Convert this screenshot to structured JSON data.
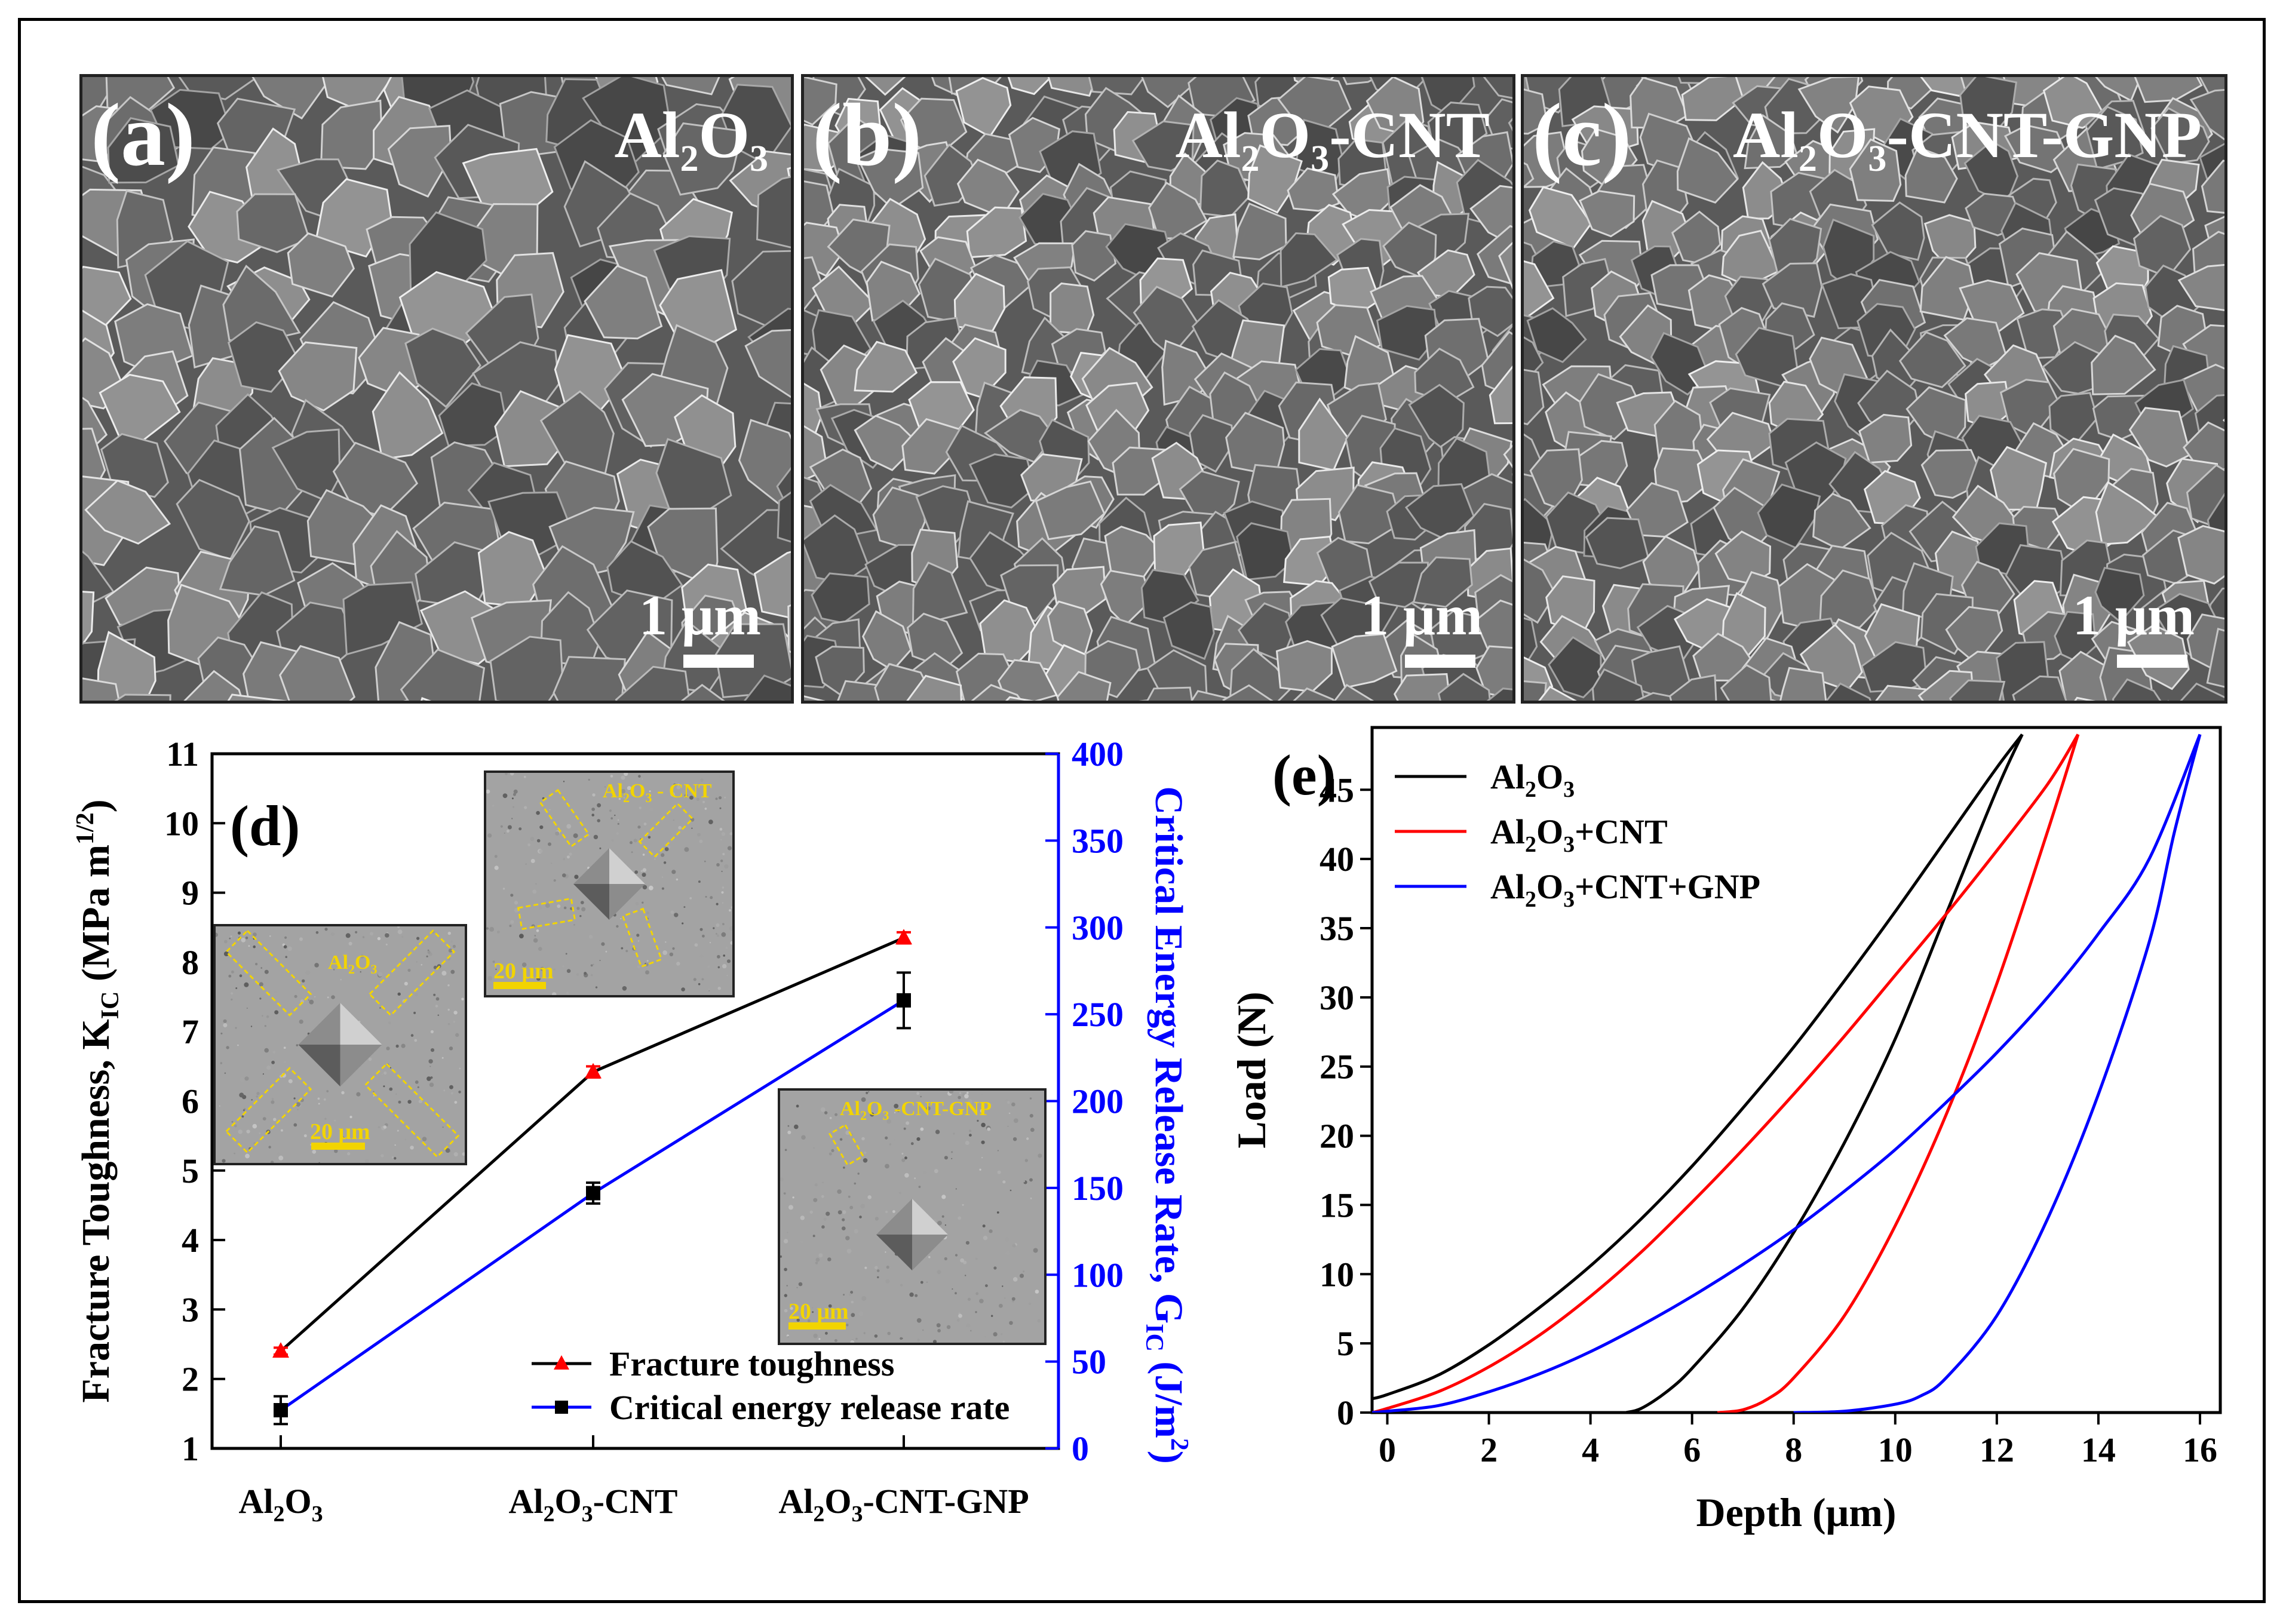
{
  "sem_panels": [
    {
      "letter": "(a)",
      "material": "Al",
      "sub1": "2",
      "mid": "O",
      "sub2": "3",
      "suffix": "",
      "scale_label": "1 μm"
    },
    {
      "letter": "(b)",
      "material": "Al",
      "sub1": "2",
      "mid": "O",
      "sub2": "3",
      "suffix": "-CNT",
      "scale_label": "1 μm"
    },
    {
      "letter": "(c)",
      "material": "Al",
      "sub1": "2",
      "mid": "O",
      "sub2": "3",
      "suffix": "-CNT-GNP",
      "scale_label": "1 μm"
    }
  ],
  "chart_data": [
    {
      "panel": "(d)",
      "type": "line",
      "categories": [
        "Al2O3",
        "Al2O3-CNT",
        "Al2O3-CNT-GNP"
      ],
      "category_labels": [
        {
          "a": "Al",
          "s1": "2",
          "b": "O",
          "s2": "3",
          "c": ""
        },
        {
          "a": "Al",
          "s1": "2",
          "b": "O",
          "s2": "3",
          "c": "-CNT"
        },
        {
          "a": "Al",
          "s1": "2",
          "b": "O",
          "s2": "3",
          "c": "-CNT-GNP"
        }
      ],
      "ylabel": "Fracture Toughness, K",
      "ylabel_sub": "IC",
      "ylabel_unit": " (MPa m",
      "ylabel_sup": "1/2",
      "ylabel_end": ")",
      "y2label": "Critical Energy Release Rate, G",
      "y2label_sub": "IC",
      "y2label_unit": " (J/m",
      "y2label_sup": "2",
      "y2label_end": ")",
      "ylim": [
        1,
        11
      ],
      "yticks": [
        1,
        2,
        3,
        4,
        5,
        6,
        7,
        8,
        9,
        10,
        11
      ],
      "y2lim": [
        0,
        400
      ],
      "y2ticks": [
        0,
        50,
        100,
        150,
        200,
        250,
        300,
        350,
        400
      ],
      "series": [
        {
          "name": "Fracture toughness",
          "axis": "left",
          "color": "#000000",
          "marker_color": "#ff0000",
          "marker": "triangle",
          "values": [
            2.4,
            6.42,
            8.35
          ],
          "errors": [
            0.05,
            0.08,
            0.08
          ]
        },
        {
          "name": "Critical energy release rate",
          "axis": "right",
          "color": "#0000ff",
          "marker_color": "#000000",
          "marker": "square",
          "values": [
            22,
            147,
            258
          ],
          "errors": [
            8,
            6,
            16
          ]
        }
      ],
      "insets": [
        {
          "label_a": "Al",
          "label_s1": "2",
          "label_b": "O",
          "label_s2": "3",
          "label_c": "",
          "scale": "20 μm"
        },
        {
          "label_a": "Al",
          "label_s1": "2",
          "label_b": "O",
          "label_s2": "3",
          "label_c": " - CNT",
          "scale": "20 μm"
        },
        {
          "label_a": "Al",
          "label_s1": "2",
          "label_b": "O",
          "label_s2": "3",
          "label_c": " -CNT-GNP",
          "scale": "20 μm"
        }
      ]
    },
    {
      "panel": "(e)",
      "type": "line",
      "xlabel": "Depth (μm)",
      "ylabel": "Load (N)",
      "xlim": [
        -0.3,
        16.4
      ],
      "ylim": [
        0,
        49.5
      ],
      "xticks": [
        0,
        2,
        4,
        6,
        8,
        10,
        12,
        14,
        16
      ],
      "yticks": [
        0,
        5,
        10,
        15,
        20,
        25,
        30,
        35,
        40,
        45
      ],
      "series": [
        {
          "name": "Al2O3",
          "label": {
            "a": "Al",
            "s1": "2",
            "b": "O",
            "s2": "3",
            "c": ""
          },
          "color": "#000000",
          "loading": [
            [
              -0.3,
              1.0
            ],
            [
              0,
              1.3
            ],
            [
              1,
              2.7
            ],
            [
              2,
              4.9
            ],
            [
              3,
              7.6
            ],
            [
              4,
              10.6
            ],
            [
              5,
              14.0
            ],
            [
              6,
              17.8
            ],
            [
              7,
              22.0
            ],
            [
              8,
              26.4
            ],
            [
              9,
              31.2
            ],
            [
              10,
              36.2
            ],
            [
              11,
              41.4
            ],
            [
              12,
              46.6
            ],
            [
              12.5,
              49.0
            ]
          ],
          "unloading": [
            [
              12.5,
              49.0
            ],
            [
              12.0,
              45.0
            ],
            [
              11.0,
              36.0
            ],
            [
              10.0,
              27.0
            ],
            [
              9.0,
              19.5
            ],
            [
              8.0,
              13.0
            ],
            [
              7.0,
              7.5
            ],
            [
              6.0,
              3.2
            ],
            [
              5.5,
              1.5
            ],
            [
              5.0,
              0.3
            ],
            [
              4.7,
              0.0
            ]
          ]
        },
        {
          "name": "Al2O3+CNT",
          "label": {
            "a": "Al",
            "s1": "2",
            "b": "O",
            "s2": "3",
            "c": "+CNT"
          },
          "color": "#ff0000",
          "loading": [
            [
              -0.3,
              0.0
            ],
            [
              0,
              0.3
            ],
            [
              1,
              1.5
            ],
            [
              2,
              3.3
            ],
            [
              3,
              5.6
            ],
            [
              4,
              8.4
            ],
            [
              5,
              11.6
            ],
            [
              6,
              15.2
            ],
            [
              7,
              19.0
            ],
            [
              8,
              23.0
            ],
            [
              9,
              27.2
            ],
            [
              10,
              31.6
            ],
            [
              11,
              36.0
            ],
            [
              12,
              40.6
            ],
            [
              13,
              45.4
            ],
            [
              13.6,
              49.0
            ]
          ],
          "unloading": [
            [
              13.6,
              49.0
            ],
            [
              13.0,
              42.0
            ],
            [
              12.0,
              31.0
            ],
            [
              11.0,
              21.5
            ],
            [
              10.0,
              13.5
            ],
            [
              9.0,
              7.0
            ],
            [
              8.0,
              2.5
            ],
            [
              7.5,
              1.0
            ],
            [
              7.0,
              0.2
            ],
            [
              6.5,
              0.0
            ]
          ]
        },
        {
          "name": "Al2O3+CNT+GNP",
          "label": {
            "a": "Al",
            "s1": "2",
            "b": "O",
            "s2": "3",
            "c": "+CNT+GNP"
          },
          "color": "#0000ff",
          "loading": [
            [
              -0.3,
              0.0
            ],
            [
              0,
              0.1
            ],
            [
              1,
              0.5
            ],
            [
              2,
              1.5
            ],
            [
              3,
              2.8
            ],
            [
              4,
              4.4
            ],
            [
              5,
              6.3
            ],
            [
              6,
              8.4
            ],
            [
              7,
              10.7
            ],
            [
              8,
              13.2
            ],
            [
              9,
              16.0
            ],
            [
              10,
              19.0
            ],
            [
              11,
              22.4
            ],
            [
              12,
              26.0
            ],
            [
              13,
              30.0
            ],
            [
              14,
              34.6
            ],
            [
              15,
              40.0
            ],
            [
              16,
              49.0
            ]
          ],
          "unloading": [
            [
              16.0,
              49.0
            ],
            [
              15.5,
              42.0
            ],
            [
              15.0,
              34.0
            ],
            [
              14.0,
              23.0
            ],
            [
              13.0,
              14.0
            ],
            [
              12.0,
              7.0
            ],
            [
              11.0,
              2.5
            ],
            [
              10.5,
              1.2
            ],
            [
              10.0,
              0.6
            ],
            [
              9.0,
              0.1
            ],
            [
              8.0,
              0.0
            ]
          ]
        }
      ]
    }
  ]
}
